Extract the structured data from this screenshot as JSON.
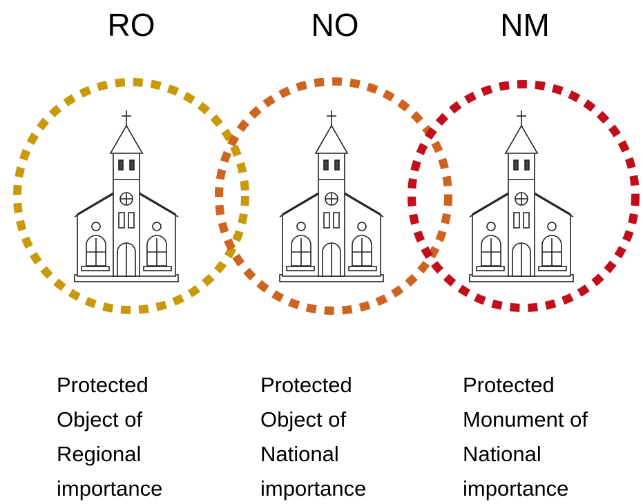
{
  "items": [
    {
      "code": "RO",
      "description": [
        "Protected",
        "Object of",
        "Regional",
        "importance"
      ]
    },
    {
      "code": "NO",
      "description": [
        "Protected",
        "Object of",
        "National",
        "importance"
      ]
    },
    {
      "code": "NM",
      "description": [
        "Protected",
        "Monument of",
        "National",
        "importance"
      ]
    }
  ]
}
